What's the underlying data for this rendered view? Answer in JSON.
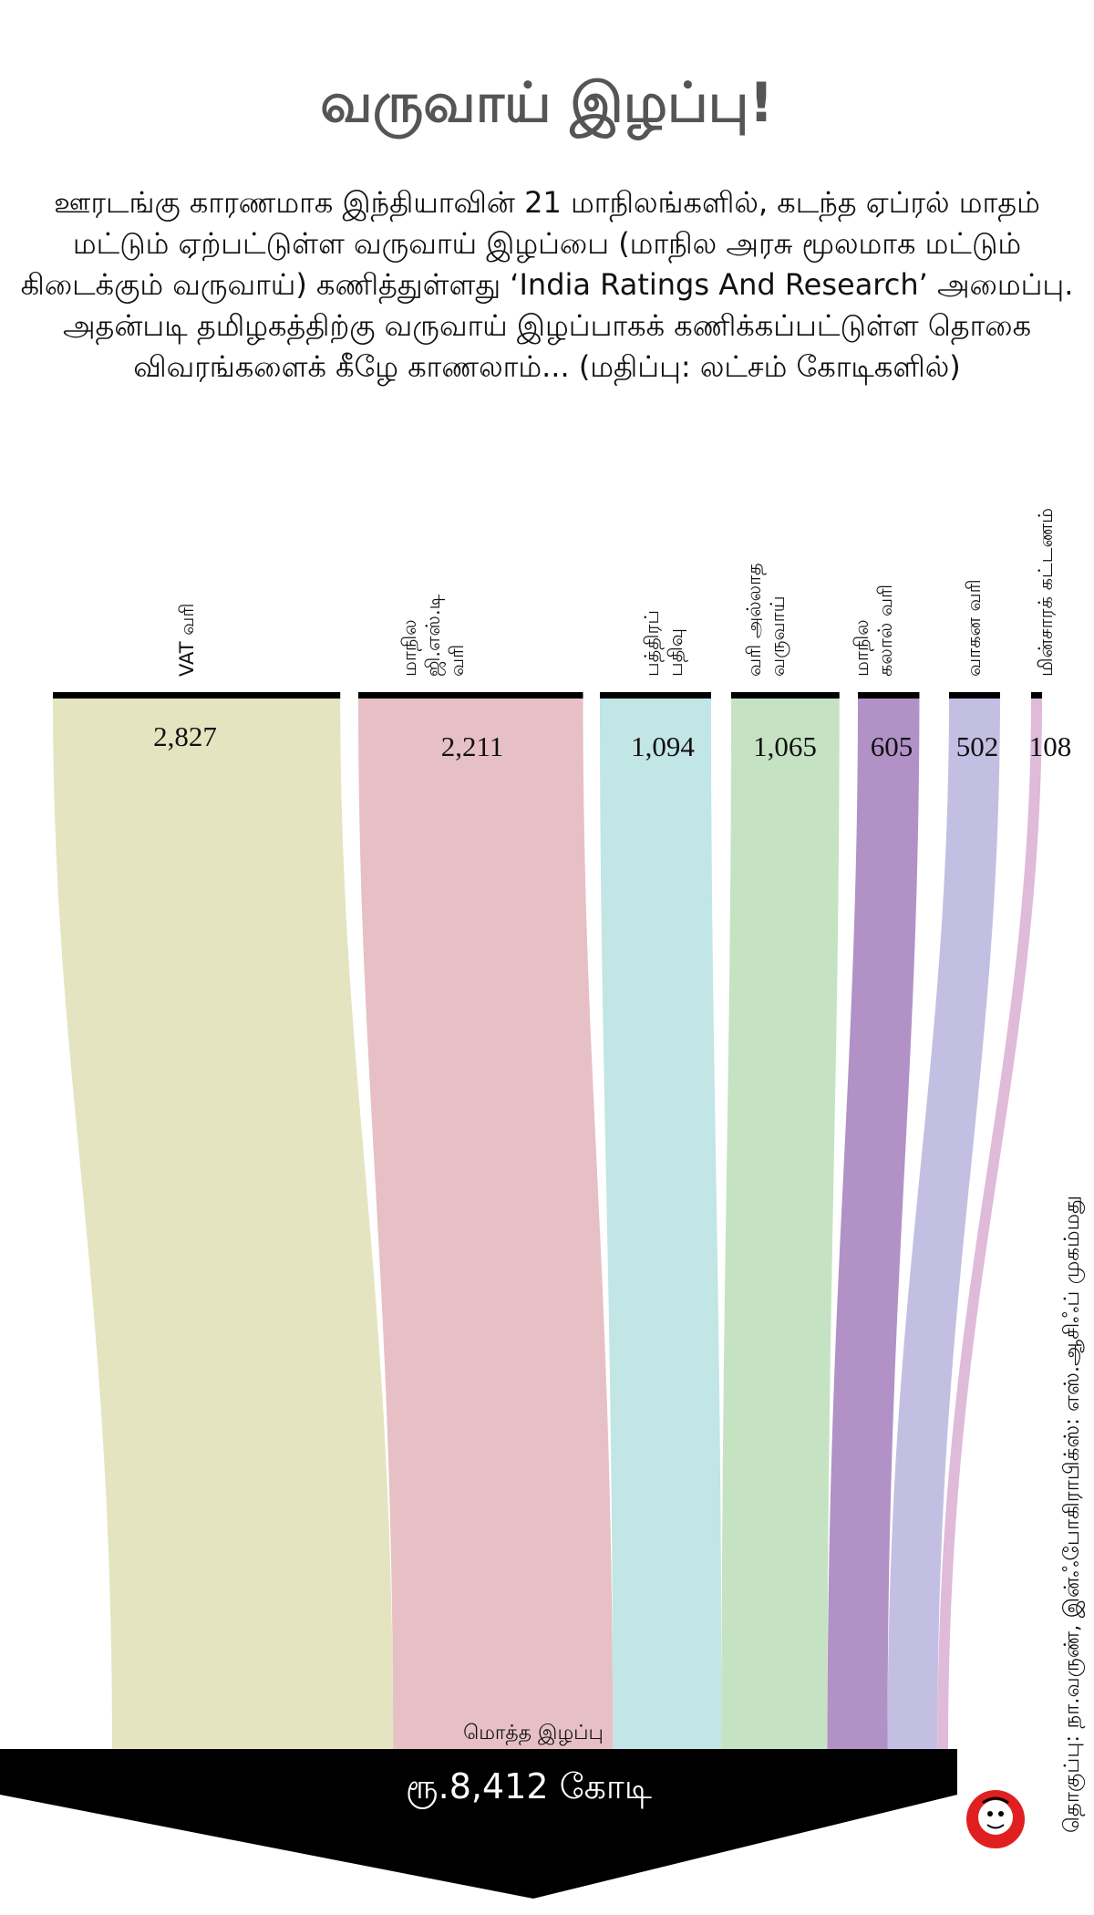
{
  "title": "வருவாய் இழப்பு!",
  "subtitle": "ஊரடங்கு காரணமாக இந்தியாவின் 21 மாநிலங்களில், கடந்த ஏப்ரல் மாதம் மட்டும் ஏற்பட்டுள்ள வருவாய் இழப்பை (மாநில அரசு மூலமாக மட்டும் கிடைக்கும் வருவாய்) கணித்துள்ளது ‘India Ratings And Research’ அமைப்பு. அதன்படி தமிழகத்திற்கு வருவாய் இழப்பாகக் கணிக்கப்பட்டுள்ள தொகை விவரங்களைக் கீழே காணலாம்... (மதிப்பு: லட்சம் கோடிகளில்)",
  "chart_data": {
    "type": "sankey",
    "categories": [
      [
        "VAT வரி"
      ],
      [
        "மாநில",
        "ஜி.எஸ்.டி",
        "வரி"
      ],
      [
        "பத்திரப்",
        "பதிவு"
      ],
      [
        "வரி அல்லாத",
        "வருவாய்"
      ],
      [
        "மாநில",
        "கலால் வரி"
      ],
      [
        "வாகன வரி"
      ],
      [
        "மின்சாரக் கட்டணம்"
      ]
    ],
    "value_labels": [
      "2,827",
      "2,211",
      "1,094",
      "1,065",
      "605",
      "502",
      "108"
    ],
    "values": [
      2827,
      2211,
      1094,
      1065,
      605,
      502,
      108
    ],
    "colors": [
      "#e4e4c1",
      "#e6c0c5",
      "#c2e5e5",
      "#c5e3c2",
      "#b191c6",
      "#c3bfe2",
      "#dfbad9"
    ],
    "total_label": "மொத்த இழப்பு",
    "total_value": "ரூ.8,412 கோடி",
    "total": 8412
  },
  "credit": "தொகுப்பு: நா.வருண், இன்ஃபோகிராபிக்ஸ்: எஸ்.ஆசிஃப் முகம்மது",
  "colors": {
    "arrow": "#000000",
    "title": "#555555"
  }
}
